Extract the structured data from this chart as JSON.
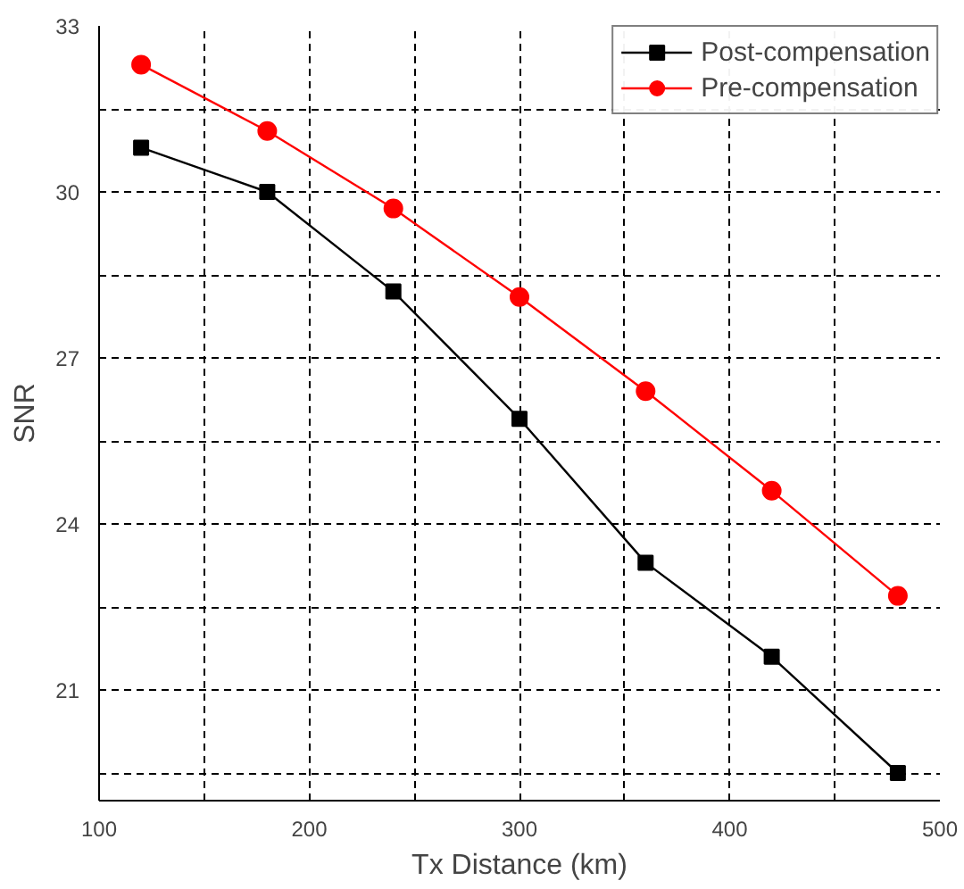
{
  "chart_data": {
    "type": "line",
    "xlabel": "Tx Distance (km)",
    "ylabel": "SNR",
    "x": [
      120,
      180,
      240,
      300,
      360,
      420,
      480
    ],
    "series": [
      {
        "name": "Post-compensation",
        "color": "#000000",
        "marker": "square",
        "values": [
          30.8,
          30.0,
          28.2,
          25.9,
          23.3,
          21.6,
          19.5
        ]
      },
      {
        "name": "Pre-compensation",
        "color": "#ff0000",
        "marker": "circle",
        "values": [
          32.3,
          31.1,
          29.7,
          28.1,
          26.4,
          24.6,
          22.7
        ]
      }
    ],
    "xlim": [
      100,
      500
    ],
    "ylim": [
      19,
      33
    ],
    "xticks": [
      100,
      {
        "value": 150,
        "label": null
      },
      200,
      {
        "value": 250,
        "label": null
      },
      300,
      {
        "value": 350,
        "label": null
      },
      400,
      {
        "value": 450,
        "label": null
      },
      500
    ],
    "yticks": [
      {
        "value": 19.5,
        "label": null
      },
      21,
      {
        "value": 22.5,
        "label": null
      },
      24,
      {
        "value": 25.5,
        "label": null
      },
      27,
      {
        "value": 28.5,
        "label": null
      },
      30,
      {
        "value": 31.5,
        "label": null
      },
      33
    ],
    "grid": true,
    "legend": "top right",
    "line_style": "solid"
  }
}
